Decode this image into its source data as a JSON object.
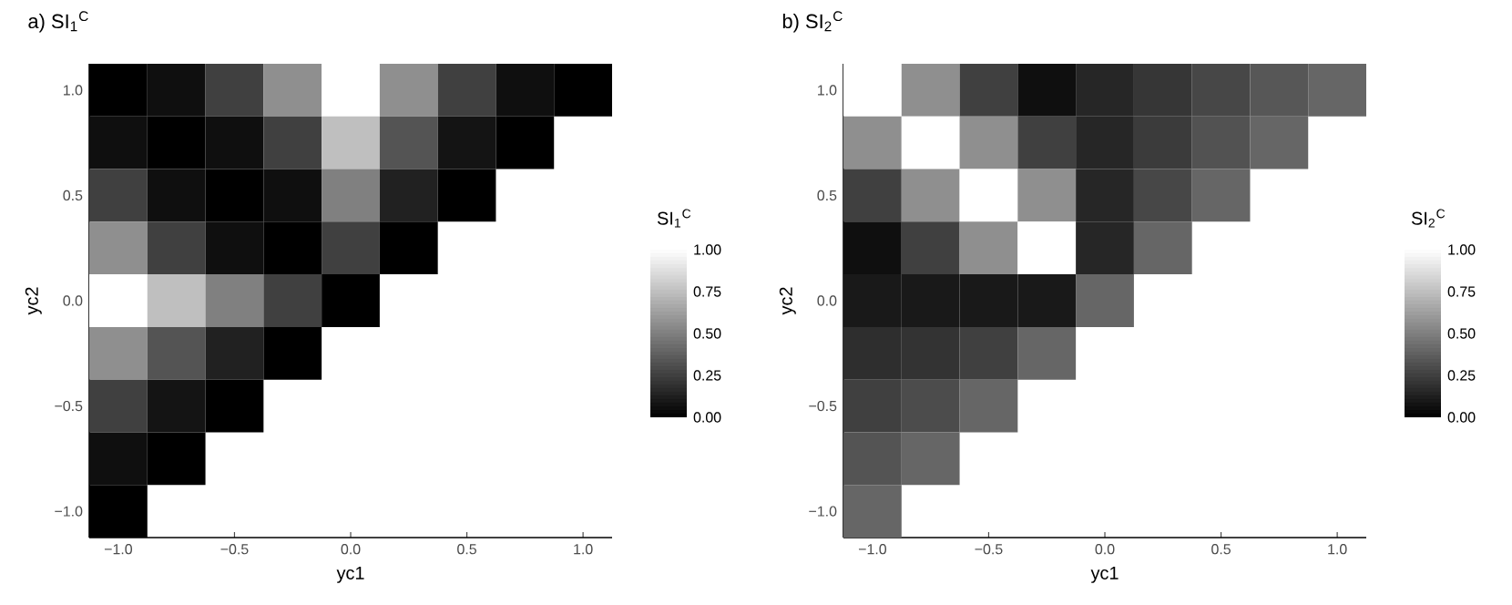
{
  "chart_data": [
    {
      "type": "heatmap",
      "title": "a) SI$_{1}$$^{C}$",
      "xlabel": "yc1",
      "ylabel": "yc2",
      "clabel": "SI$_{1}$$^{C}$",
      "categories": [
        "−1.0",
        null,
        "−0.5",
        null,
        "0.0",
        null,
        "0.5",
        null,
        "1.0"
      ],
      "y_categories": [
        "1.0",
        null,
        "0.5",
        null,
        "0.0",
        null,
        "−0.5",
        null,
        "−1.0"
      ],
      "cells": [
        [
          0,
          0.06,
          0.25,
          0.56,
          1,
          0.56,
          0.25,
          0.06,
          0
        ],
        [
          0.06,
          0,
          0.06,
          0.25,
          0.75,
          0.33,
          0.08,
          0,
          null
        ],
        [
          0.25,
          0.06,
          0,
          0.06,
          0.5,
          0.13,
          0,
          null,
          null
        ],
        [
          0.56,
          0.25,
          0.06,
          0,
          0.25,
          0,
          null,
          null,
          null
        ],
        [
          1,
          0.75,
          0.5,
          0.25,
          0,
          null,
          null,
          null,
          null
        ],
        [
          0.56,
          0.33,
          0.13,
          0,
          null,
          null,
          null,
          null,
          null
        ],
        [
          0.25,
          0.08,
          0,
          null,
          null,
          null,
          null,
          null,
          null
        ],
        [
          0.06,
          0,
          null,
          null,
          null,
          null,
          null,
          null,
          null
        ],
        [
          0,
          null,
          null,
          null,
          null,
          null,
          null,
          null,
          null
        ]
      ],
      "clim": [
        0,
        1
      ],
      "cticks": [
        {
          "value": 0,
          "label": "0.00"
        },
        {
          "value": 0.25,
          "label": "0.25"
        },
        {
          "value": 0.5,
          "label": "0.50"
        },
        {
          "value": 0.75,
          "label": "0.75"
        },
        {
          "value": 1,
          "label": "1.00"
        }
      ]
    },
    {
      "type": "heatmap",
      "title": "b) SI$_{2}$$^{C}$",
      "xlabel": "yc1",
      "ylabel": "yc2",
      "clabel": "SI$_{2}$$^{C}$",
      "categories": [
        "−1.0",
        null,
        "−0.5",
        null,
        "0.0",
        null,
        "0.5",
        null,
        "1.0"
      ],
      "y_categories": [
        "1.0",
        null,
        "0.5",
        null,
        "0.0",
        null,
        "−0.5",
        null,
        "−1.0"
      ],
      "cells": [
        [
          1,
          0.56,
          0.25,
          0.06,
          0.15,
          0.21,
          0.28,
          0.34,
          0.4
        ],
        [
          0.56,
          1,
          0.56,
          0.25,
          0.15,
          0.23,
          0.32,
          0.4,
          null
        ],
        [
          0.25,
          0.56,
          1,
          0.56,
          0.15,
          0.28,
          0.4,
          null,
          null
        ],
        [
          0.06,
          0.25,
          0.56,
          1,
          0.15,
          0.4,
          null,
          null,
          null
        ],
        [
          0.1,
          0.1,
          0.1,
          0.1,
          0.4,
          null,
          null,
          null,
          null
        ],
        [
          0.18,
          0.2,
          0.25,
          0.4,
          null,
          null,
          null,
          null,
          null
        ],
        [
          0.25,
          0.3,
          0.4,
          null,
          null,
          null,
          null,
          null,
          null
        ],
        [
          0.33,
          0.4,
          null,
          null,
          null,
          null,
          null,
          null,
          null
        ],
        [
          0.4,
          null,
          null,
          null,
          null,
          null,
          null,
          null,
          null
        ]
      ],
      "clim": [
        0,
        1
      ],
      "cticks": [
        {
          "value": 0,
          "label": "0.00"
        },
        {
          "value": 0.25,
          "label": "0.25"
        },
        {
          "value": 0.5,
          "label": "0.50"
        },
        {
          "value": 0.75,
          "label": "0.75"
        },
        {
          "value": 1,
          "label": "1.00"
        }
      ]
    }
  ]
}
